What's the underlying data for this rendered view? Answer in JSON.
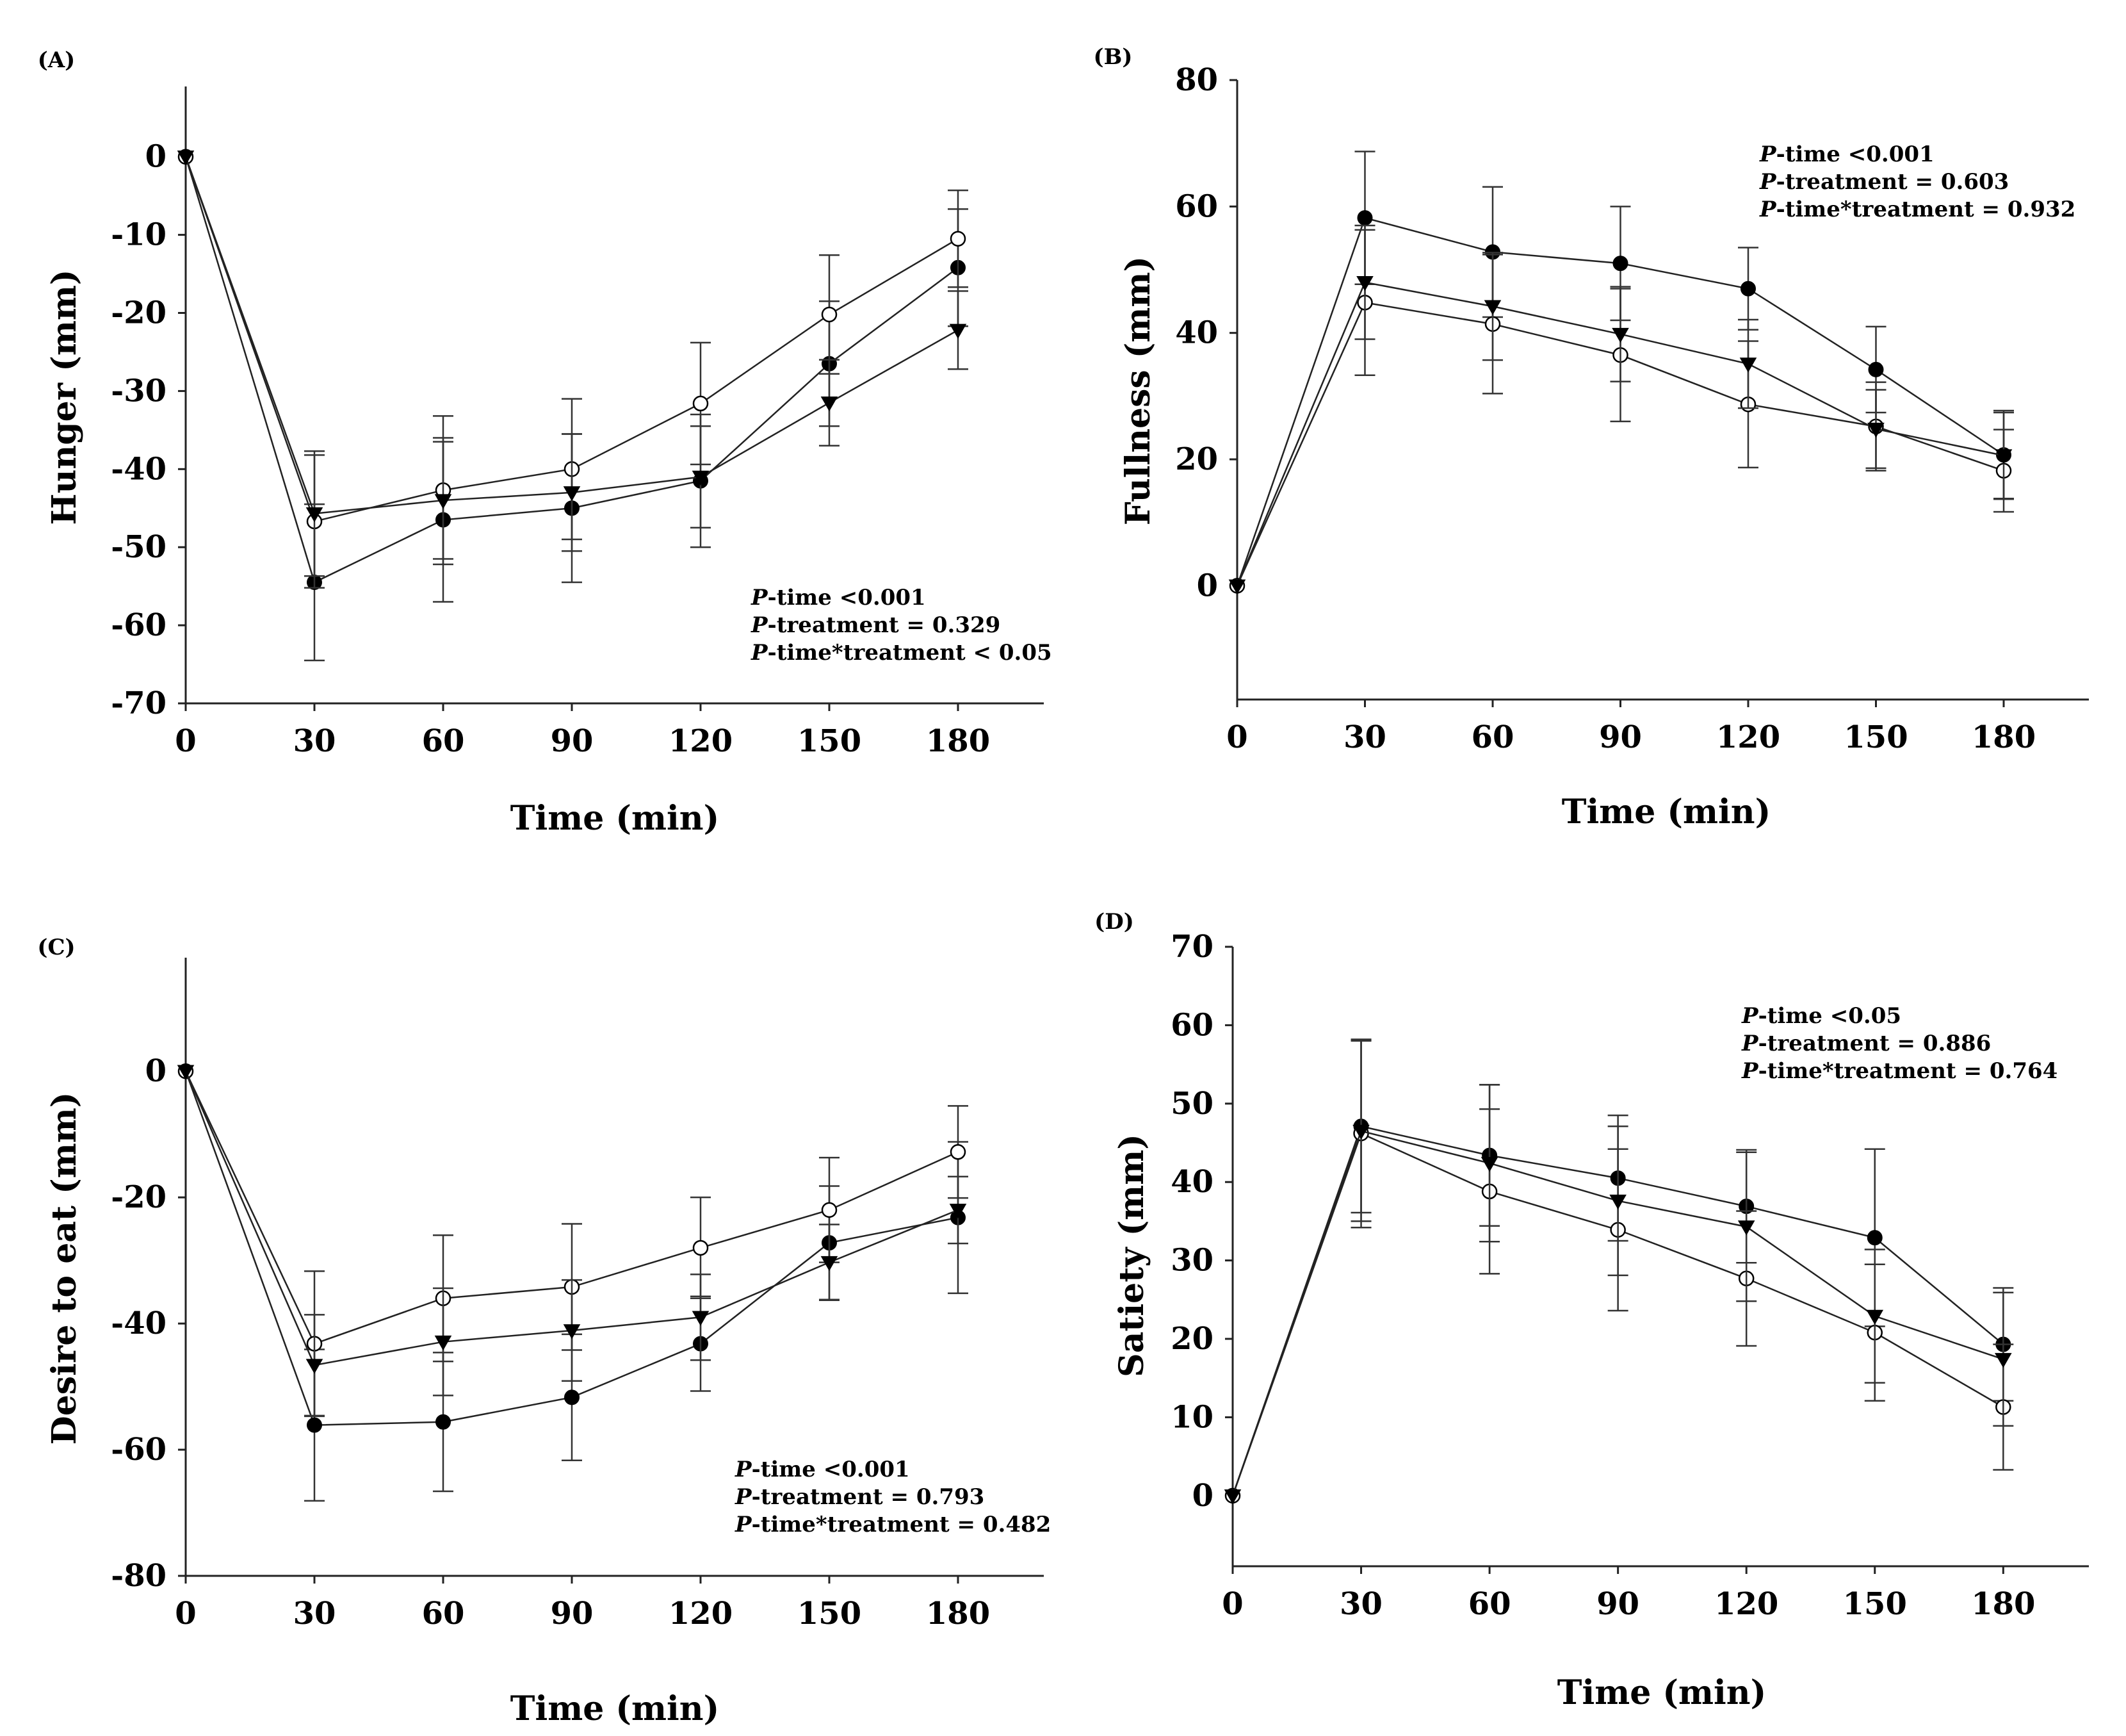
{
  "chart_data": [
    {
      "panel": "(A)",
      "type": "line",
      "ylabel": "Hunger (mm)",
      "xlabel": "Time (min)",
      "xlim": [
        0,
        200
      ],
      "ylim": [
        -70,
        9
      ],
      "x_ticks": [
        0,
        30,
        60,
        90,
        120,
        150,
        180
      ],
      "y_ticks": [
        0,
        -10,
        -20,
        -30,
        -40,
        -50,
        -60,
        -70
      ],
      "stats": [
        {
          "p": "P",
          "text": "-time <0.001"
        },
        {
          "p": "P",
          "text": "-treatment = 0.329"
        },
        {
          "p": "P",
          "text": "-time*treatment < 0.05"
        }
      ],
      "stats_position": "bottom-right",
      "series": [
        {
          "marker": "filled-circle",
          "x": [
            0,
            30,
            60,
            90,
            120,
            150,
            180
          ],
          "y": [
            0,
            -54.5,
            -46.5,
            -45,
            -41.5,
            -26.5,
            -14.2
          ],
          "err": [
            0,
            10,
            10.5,
            9.5,
            8.5,
            8,
            7.5
          ]
        },
        {
          "marker": "open-circle",
          "x": [
            0,
            30,
            60,
            90,
            120,
            150,
            180
          ],
          "y": [
            0,
            -46.7,
            -42.7,
            -40,
            -31.6,
            -20.2,
            -10.5
          ],
          "err": [
            0,
            8.5,
            9.5,
            9,
            7.8,
            7.6,
            6.2
          ]
        },
        {
          "marker": "filled-triangle",
          "x": [
            0,
            30,
            60,
            90,
            120,
            150,
            180
          ],
          "y": [
            0,
            -45.7,
            -44,
            -43,
            -41,
            -31.5,
            -22.2
          ],
          "err": [
            0,
            8,
            7.5,
            7.5,
            6.5,
            5.5,
            5
          ]
        }
      ]
    },
    {
      "panel": "(B)",
      "type": "line",
      "ylabel": "Fullness (mm)",
      "xlabel": "Time (min)",
      "xlim": [
        0,
        200
      ],
      "ylim": [
        -18,
        80
      ],
      "x_ticks": [
        0,
        30,
        60,
        90,
        120,
        150,
        180
      ],
      "y_ticks": [
        0,
        20,
        40,
        60,
        80
      ],
      "stats": [
        {
          "p": "P",
          "text": "-time <0.001"
        },
        {
          "p": "P",
          "text": "-treatment = 0.603"
        },
        {
          "p": "P",
          "text": "-time*treatment = 0.932"
        }
      ],
      "stats_position": "top-right",
      "series": [
        {
          "marker": "filled-circle",
          "x": [
            0,
            30,
            60,
            90,
            120,
            150,
            180
          ],
          "y": [
            0,
            58.2,
            52.8,
            51,
            47,
            34.2,
            20.7
          ],
          "err": [
            0,
            10.5,
            10.3,
            9,
            6.5,
            6.8,
            7
          ]
        },
        {
          "marker": "open-circle",
          "x": [
            0,
            30,
            60,
            90,
            120,
            150,
            180
          ],
          "y": [
            0,
            44.8,
            41.4,
            36.5,
            28.7,
            25.2,
            18.2
          ],
          "err": [
            0,
            11.5,
            11,
            10.5,
            10,
            7,
            6.5
          ]
        },
        {
          "marker": "filled-triangle",
          "x": [
            0,
            30,
            60,
            90,
            120,
            150,
            180
          ],
          "y": [
            0,
            48,
            44.2,
            39.8,
            35.1,
            24.8,
            20.6
          ],
          "err": [
            0,
            9,
            8.5,
            7.5,
            7,
            6.2,
            6.8
          ]
        }
      ]
    },
    {
      "panel": "(C)",
      "type": "line",
      "ylabel": "Desire to eat (mm)",
      "xlabel": "Time (min)",
      "xlim": [
        0,
        200
      ],
      "ylim": [
        -80,
        18
      ],
      "x_ticks": [
        0,
        30,
        60,
        90,
        120,
        150,
        180
      ],
      "y_ticks": [
        0,
        -20,
        -40,
        -60,
        -80
      ],
      "stats": [
        {
          "p": "P",
          "text": "-time <0.001"
        },
        {
          "p": "P",
          "text": "-treatment = 0.793"
        },
        {
          "p": "P",
          "text": "-time*treatment = 0.482"
        }
      ],
      "stats_position": "bottom-right",
      "series": [
        {
          "marker": "filled-circle",
          "x": [
            0,
            30,
            60,
            90,
            120,
            150,
            180
          ],
          "y": [
            0,
            -56.1,
            -55.6,
            -51.7,
            -43.2,
            -27.2,
            -23.2
          ],
          "err": [
            0,
            12,
            11,
            10,
            7.5,
            9,
            12
          ]
        },
        {
          "marker": "open-circle",
          "x": [
            0,
            30,
            60,
            90,
            120,
            150,
            180
          ],
          "y": [
            0,
            -43.2,
            -36,
            -34.2,
            -28,
            -22,
            -12.8
          ],
          "err": [
            0,
            11.5,
            10,
            10,
            8,
            8.3,
            7.3
          ]
        },
        {
          "marker": "filled-triangle",
          "x": [
            0,
            30,
            60,
            90,
            120,
            150,
            180
          ],
          "y": [
            0,
            -46.6,
            -42.9,
            -41.1,
            -39,
            -30.3,
            -22
          ],
          "err": [
            0,
            8,
            8.5,
            8,
            6.8,
            6,
            5.3
          ]
        }
      ]
    },
    {
      "panel": "(D)",
      "type": "line",
      "ylabel": "Satiety (mm)",
      "xlabel": "Time (min)",
      "xlim": [
        0,
        200
      ],
      "ylim": [
        -9,
        70
      ],
      "x_ticks": [
        0,
        30,
        60,
        90,
        120,
        150,
        180
      ],
      "y_ticks": [
        0,
        10,
        20,
        30,
        40,
        50,
        60,
        70
      ],
      "stats": [
        {
          "p": "P",
          "text": "-time <0.05"
        },
        {
          "p": "P",
          "text": "-treatment = 0.886"
        },
        {
          "p": "P",
          "text": "-time*treatment = 0.764"
        }
      ],
      "stats_position": "top-right",
      "series": [
        {
          "marker": "filled-circle",
          "x": [
            0,
            30,
            60,
            90,
            120,
            150,
            180
          ],
          "y": [
            0,
            47.1,
            43.4,
            40.5,
            36.9,
            32.9,
            19.3
          ],
          "err": [
            0,
            11,
            9,
            8,
            7.2,
            11.3,
            7.2
          ]
        },
        {
          "marker": "open-circle",
          "x": [
            0,
            30,
            60,
            90,
            120,
            150,
            180
          ],
          "y": [
            0,
            46.2,
            38.8,
            33.9,
            27.7,
            20.8,
            11.3
          ],
          "err": [
            0,
            12,
            10.5,
            10.3,
            8.6,
            8.7,
            8
          ]
        },
        {
          "marker": "filled-triangle",
          "x": [
            0,
            30,
            60,
            90,
            120,
            150,
            180
          ],
          "y": [
            0,
            46.5,
            42.4,
            37.6,
            34.3,
            22.9,
            17.4
          ],
          "err": [
            0,
            11.5,
            10,
            9.5,
            9.5,
            8.5,
            8.5
          ]
        }
      ]
    }
  ]
}
